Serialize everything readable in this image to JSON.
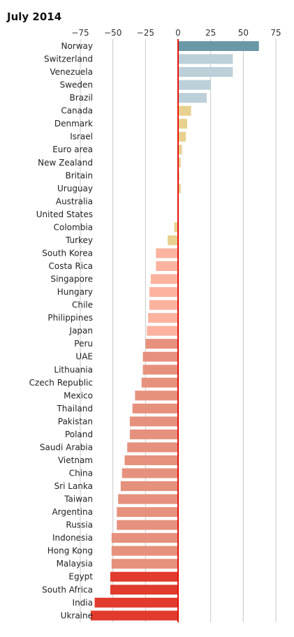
{
  "chart_data": {
    "type": "bar",
    "orientation": "horizontal",
    "title": "July 2014",
    "xlabel": "",
    "ylabel": "",
    "xlim": [
      -75,
      75
    ],
    "xticks": [
      -75,
      -50,
      -25,
      0,
      25,
      50,
      75
    ],
    "xtick_labels": [
      "−75",
      "−50",
      "−25",
      "0",
      "25",
      "50",
      "75"
    ],
    "grid": true,
    "categories": [
      "Norway",
      "Switzerland",
      "Venezuela",
      "Sweden",
      "Brazil",
      "Canada",
      "Denmark",
      "Israel",
      "Euro area",
      "New Zealand",
      "Britain",
      "Uruguay",
      "Australia",
      "United States",
      "Colombia",
      "Turkey",
      "South Korea",
      "Costa Rica",
      "Singapore",
      "Hungary",
      "Chile",
      "Philippines",
      "Japan",
      "Peru",
      "UAE",
      "Lithuania",
      "Czech Republic",
      "Mexico",
      "Thailand",
      "Pakistan",
      "Poland",
      "Saudi Arabia",
      "Vietnam",
      "China",
      "Sri Lanka",
      "Taiwan",
      "Argentina",
      "Russia",
      "Indonesia",
      "Hong Kong",
      "Malaysia",
      "Egypt",
      "South Africa",
      "India",
      "Ukraine"
    ],
    "values": [
      62,
      42,
      42,
      25,
      22,
      10,
      7,
      6,
      3,
      2,
      1,
      2,
      0,
      0,
      -3,
      -8,
      -17,
      -17,
      -21,
      -22,
      -22,
      -23,
      -24,
      -25,
      -27,
      -27,
      -28,
      -33,
      -35,
      -37,
      -37,
      -39,
      -41,
      -43,
      -44,
      -46,
      -47,
      -47,
      -51,
      -51,
      -51,
      -52,
      -52,
      -64,
      -67
    ],
    "colors": {
      "strong_positive": "#6a98a6",
      "positive": "#bcd0d9",
      "slight": "#e8d18f",
      "moderate_negative": "#fbb3a0",
      "negative": "#e6917d",
      "strong_negative": "#e03b2c",
      "zero_line": "#e3120b",
      "grid": "#c8c8c8"
    }
  }
}
